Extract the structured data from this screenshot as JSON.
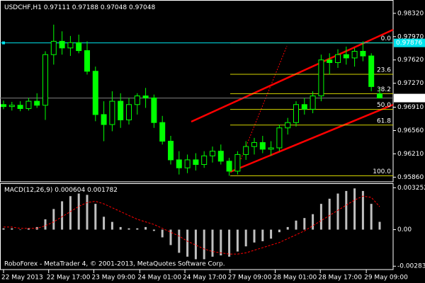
{
  "chart_data": [
    {
      "type": "candlestick",
      "title": "USDCHF,H1",
      "open": [
        0.9695,
        0.9692,
        0.9694,
        0.9689,
        0.97,
        0.9694,
        0.977,
        0.979,
        0.978,
        0.9788,
        0.9776,
        0.9745,
        0.968,
        0.9665,
        0.97,
        0.9672,
        0.9695,
        0.9708,
        0.9705,
        0.9668,
        0.964,
        0.9612,
        0.96,
        0.9612,
        0.9605,
        0.9618,
        0.9625,
        0.961,
        0.9595,
        0.962,
        0.9632,
        0.9638,
        0.9628,
        0.963,
        0.966,
        0.9668,
        0.9695,
        0.9688,
        0.9708,
        0.9762,
        0.9758,
        0.977,
        0.9765,
        0.9775,
        0.9768,
        0.97111
      ],
      "high": [
        0.9701,
        0.9699,
        0.97,
        0.9705,
        0.9712,
        0.9775,
        0.9815,
        0.9805,
        0.9798,
        0.98,
        0.979,
        0.9752,
        0.97,
        0.9715,
        0.9712,
        0.9705,
        0.9712,
        0.972,
        0.971,
        0.9678,
        0.9648,
        0.9625,
        0.962,
        0.9622,
        0.9625,
        0.9632,
        0.9635,
        0.9615,
        0.9625,
        0.964,
        0.9645,
        0.9648,
        0.964,
        0.9665,
        0.9675,
        0.97,
        0.9705,
        0.9715,
        0.977,
        0.9772,
        0.9778,
        0.9782,
        0.978,
        0.979,
        0.9772,
        0.97188
      ],
      "low": [
        0.9688,
        0.9686,
        0.9685,
        0.9686,
        0.969,
        0.9672,
        0.9755,
        0.977,
        0.9768,
        0.9772,
        0.974,
        0.967,
        0.964,
        0.9655,
        0.966,
        0.9665,
        0.968,
        0.969,
        0.966,
        0.9635,
        0.9605,
        0.959,
        0.9592,
        0.9596,
        0.96,
        0.9608,
        0.9605,
        0.9588,
        0.959,
        0.9612,
        0.962,
        0.9622,
        0.9618,
        0.9625,
        0.965,
        0.9662,
        0.968,
        0.9682,
        0.97,
        0.974,
        0.975,
        0.9755,
        0.9752,
        0.976,
        0.9715,
        0.97048
      ],
      "close": [
        0.9692,
        0.9694,
        0.9689,
        0.97,
        0.9694,
        0.977,
        0.979,
        0.978,
        0.9788,
        0.9776,
        0.9745,
        0.968,
        0.9665,
        0.97,
        0.9672,
        0.9695,
        0.9708,
        0.9705,
        0.9668,
        0.964,
        0.9612,
        0.96,
        0.9612,
        0.9605,
        0.9618,
        0.9625,
        0.961,
        0.9595,
        0.962,
        0.9632,
        0.9638,
        0.9628,
        0.963,
        0.966,
        0.9668,
        0.9695,
        0.9688,
        0.9708,
        0.9762,
        0.9758,
        0.977,
        0.9765,
        0.9775,
        0.9768,
        0.9722,
        0.97048
      ],
      "color": "#00ff00",
      "ylim": [
        0.9579,
        0.9852
      ],
      "yticks": [
        {
          "value": 0.9832,
          "label": "0.98320"
        },
        {
          "value": 0.9797,
          "label": "0.97970"
        },
        {
          "value": 0.9762,
          "label": "0.97620"
        },
        {
          "value": 0.9727,
          "label": "0.97270"
        },
        {
          "value": 0.9691,
          "label": "0.96910"
        },
        {
          "value": 0.9656,
          "label": "0.96560"
        },
        {
          "value": 0.9621,
          "label": "0.96210"
        },
        {
          "value": 0.9586,
          "label": "0.95860"
        }
      ],
      "xticks": [
        {
          "value": 0,
          "label": "22 May 2013"
        },
        {
          "value": 5.4,
          "label": "22 May 17:00"
        },
        {
          "value": 10.8,
          "label": "23 May 09:00"
        },
        {
          "value": 16.3,
          "label": "24 May 01:00"
        },
        {
          "value": 21.7,
          "label": "24 May 17:00"
        },
        {
          "value": 27.1,
          "label": "27 May 09:00"
        },
        {
          "value": 32.5,
          "label": "28 May 01:00"
        },
        {
          "value": 37.9,
          "label": "28 May 17:00"
        },
        {
          "value": 43.4,
          "label": "29 May 09:00"
        }
      ],
      "hline": {
        "value": 0.97876,
        "label": "0.97876",
        "color": "#00e5ee"
      },
      "current_price": {
        "value": 0.97048,
        "label": "0.97048"
      },
      "fib_levels": [
        {
          "label": "0.0",
          "price": 0.97876
        },
        {
          "label": "23.6",
          "price": 0.97405
        },
        {
          "label": "38.2",
          "price": 0.97114
        },
        {
          "label": "50.0",
          "price": 0.96878
        },
        {
          "label": "61.8",
          "price": 0.96642
        },
        {
          "label": "100.0",
          "price": 0.9588
        }
      ],
      "fib_color": "#d4d400"
    },
    {
      "type": "macd",
      "title": "MACD(12,26,9)",
      "values": [
        0.0001,
        0.0001,
        0.0,
        0.0001,
        0.0002,
        0.0008,
        0.0016,
        0.0022,
        0.0026,
        0.0028,
        0.0027,
        0.002,
        0.001,
        0.0006,
        0.0002,
        0.0001,
        0.0001,
        0.0002,
        -0.0001,
        -0.0006,
        -0.0012,
        -0.0018,
        -0.0021,
        -0.0023,
        -0.0023,
        -0.0021,
        -0.002,
        -0.0021,
        -0.0017,
        -0.0013,
        -0.001,
        -0.0009,
        -0.0007,
        -0.0002,
        0.0002,
        0.0007,
        0.0009,
        0.0012,
        0.002,
        0.0024,
        0.0028,
        0.003,
        0.0032,
        0.003,
        0.002,
        0.000604
      ],
      "signal": [
        0.0002,
        0.0002,
        0.0001,
        0.0001,
        0.0001,
        0.0003,
        0.0006,
        0.001,
        0.0014,
        0.0018,
        0.0021,
        0.0022,
        0.002,
        0.0017,
        0.0014,
        0.0011,
        0.0008,
        0.0006,
        0.0004,
        0.0001,
        -0.0002,
        -0.0005,
        -0.0009,
        -0.0012,
        -0.0015,
        -0.0017,
        -0.0018,
        -0.0019,
        -0.0019,
        -0.0018,
        -0.0016,
        -0.0014,
        -0.0012,
        -0.001,
        -0.0007,
        -0.0004,
        -0.0001,
        0.0003,
        0.0007,
        0.0011,
        0.0015,
        0.0019,
        0.0023,
        0.0026,
        0.0025,
        0.001782
      ],
      "color": "#c0c0c0",
      "signal_color": "#ff0000",
      "ylim": [
        -0.0031,
        0.0036
      ],
      "yticks": [
        0.003252,
        {
          "value": 0,
          "label": "0.00"
        },
        -0.002839
      ],
      "footer": "RoboForex - MetaTrader 4, © 2001-2013, MetaQuotes Software Corp."
    }
  ]
}
